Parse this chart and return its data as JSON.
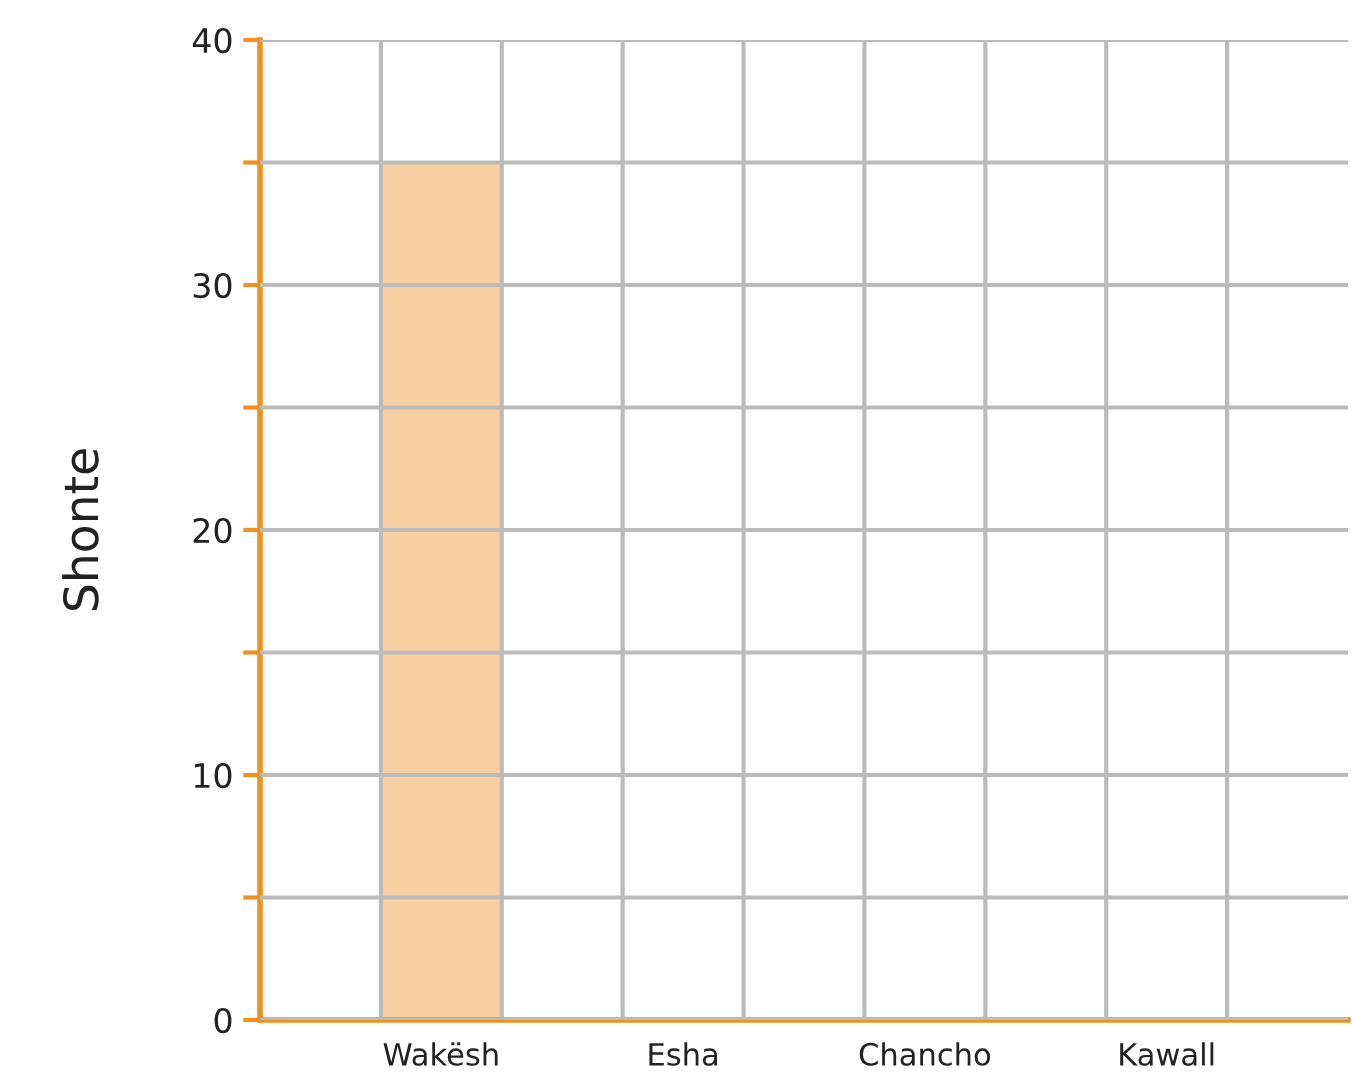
{
  "chart_data": {
    "type": "bar",
    "ylabel": "Shonte",
    "categories": [
      null,
      "Wakësh",
      null,
      "Esha",
      null,
      "Chancho",
      null,
      "Kawall",
      null
    ],
    "values": [
      null,
      35,
      null,
      0,
      null,
      0,
      null,
      0,
      null
    ],
    "color": "#f8cfa0",
    "ylim": [
      0,
      40
    ],
    "yticks": [
      0,
      {
        "value": 5,
        "label": null
      },
      10,
      {
        "value": 15,
        "label": null
      },
      20,
      {
        "value": 25,
        "label": null
      },
      30,
      {
        "value": 35,
        "label": null
      },
      40
    ],
    "grid": true
  }
}
